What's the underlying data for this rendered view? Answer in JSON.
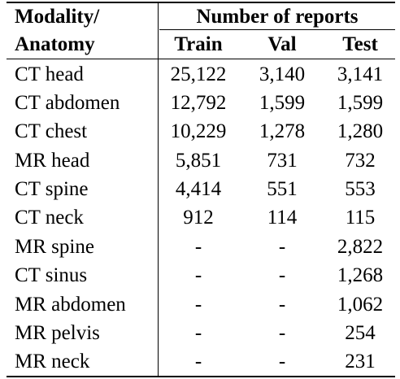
{
  "header": {
    "modality_line1": "Modality/",
    "modality_line2": "Anatomy",
    "group_label": "Number of reports",
    "train": "Train",
    "val": "Val",
    "test": "Test"
  },
  "rows": [
    {
      "modality": "CT head",
      "train": "25,122",
      "val": "3,140",
      "test": "3,141"
    },
    {
      "modality": "CT abdomen",
      "train": "12,792",
      "val": "1,599",
      "test": "1,599"
    },
    {
      "modality": "CT chest",
      "train": "10,229",
      "val": "1,278",
      "test": "1,280"
    },
    {
      "modality": "MR head",
      "train": "5,851",
      "val": "731",
      "test": "732"
    },
    {
      "modality": "CT spine",
      "train": "4,414",
      "val": "551",
      "test": "553"
    },
    {
      "modality": "CT neck",
      "train": "912",
      "val": "114",
      "test": "115"
    },
    {
      "modality": "MR spine",
      "train": "-",
      "val": "-",
      "test": "2,822"
    },
    {
      "modality": "CT sinus",
      "train": "-",
      "val": "-",
      "test": "1,268"
    },
    {
      "modality": "MR abdomen",
      "train": "-",
      "val": "-",
      "test": "1,062"
    },
    {
      "modality": "MR pelvis",
      "train": "-",
      "val": "-",
      "test": "254"
    },
    {
      "modality": "MR neck",
      "train": "-",
      "val": "-",
      "test": "231"
    }
  ]
}
